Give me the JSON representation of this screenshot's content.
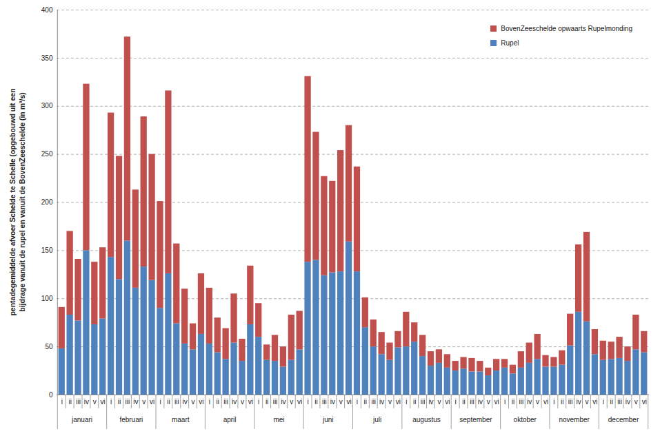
{
  "chart_data": {
    "type": "bar",
    "stacked": true,
    "grid": true,
    "legend": "top-right",
    "y_label": "pentadegemiddelde afvoer Schelde te Schelle (opgebouwd uit een bijdrage vanuit de rupel en vanuit de BovenZeeschelde (in m³/s)",
    "ylim": [
      0,
      400
    ],
    "yticks": [
      0,
      50,
      100,
      150,
      200,
      250,
      300,
      350,
      400
    ],
    "group_labels": [
      "januari",
      "februari",
      "maart",
      "april",
      "mei",
      "juni",
      "juli",
      "augustus",
      "september",
      "oktober",
      "november",
      "december"
    ],
    "categories": [
      "i",
      "ii",
      "iii",
      "iv",
      "v",
      "vi",
      "i",
      "ii",
      "iii",
      "iv",
      "v",
      "vi",
      "i",
      "ii",
      "iii",
      "iv",
      "v",
      "vi",
      "i",
      "ii",
      "iii",
      "iv",
      "v",
      "vi",
      "i",
      "ii",
      "iii",
      "iv",
      "v",
      "vi",
      "i",
      "ii",
      "iii",
      "iv",
      "v",
      "vi",
      "i",
      "ii",
      "iii",
      "iv",
      "v",
      "vi",
      "i",
      "ii",
      "iii",
      "iv",
      "v",
      "vi",
      "i",
      "ii",
      "iii",
      "iv",
      "v",
      "vi",
      "i",
      "ii",
      "iii",
      "iv",
      "v",
      "vi",
      "i",
      "ii",
      "iii",
      "iv",
      "v",
      "vi",
      "i",
      "ii",
      "iii",
      "iv",
      "v",
      "vi"
    ],
    "series": [
      {
        "name": "Rupel",
        "color": "#4f81bd",
        "values": [
          48,
          83,
          77,
          150,
          73,
          79,
          143,
          120,
          160,
          111,
          133,
          119,
          90,
          126,
          74,
          53,
          47,
          63,
          53,
          44,
          37,
          54,
          35,
          73,
          60,
          36,
          35,
          29,
          36,
          47,
          138,
          140,
          124,
          127,
          128,
          159,
          128,
          70,
          50,
          42,
          36,
          49,
          50,
          55,
          40,
          30,
          33,
          28,
          25,
          27,
          24,
          24,
          20,
          25,
          28,
          22,
          28,
          33,
          37,
          29,
          29,
          31,
          51,
          86,
          76,
          42,
          36,
          37,
          38,
          35,
          47,
          44
        ]
      },
      {
        "name": "BovenZeeschelde opwaarts Rupelmonding",
        "color": "#c0504d",
        "values": [
          43,
          87,
          64,
          173,
          65,
          74,
          150,
          128,
          212,
          102,
          156,
          131,
          111,
          190,
          83,
          57,
          27,
          63,
          58,
          36,
          32,
          51,
          23,
          61,
          35,
          16,
          27,
          21,
          47,
          40,
          193,
          133,
          103,
          95,
          126,
          121,
          109,
          31,
          28,
          23,
          18,
          17,
          36,
          20,
          22,
          15,
          14,
          14,
          10,
          12,
          14,
          11,
          8,
          12,
          9,
          9,
          17,
          21,
          26,
          12,
          10,
          15,
          33,
          70,
          93,
          26,
          20,
          18,
          22,
          15,
          36,
          22
        ]
      }
    ]
  }
}
